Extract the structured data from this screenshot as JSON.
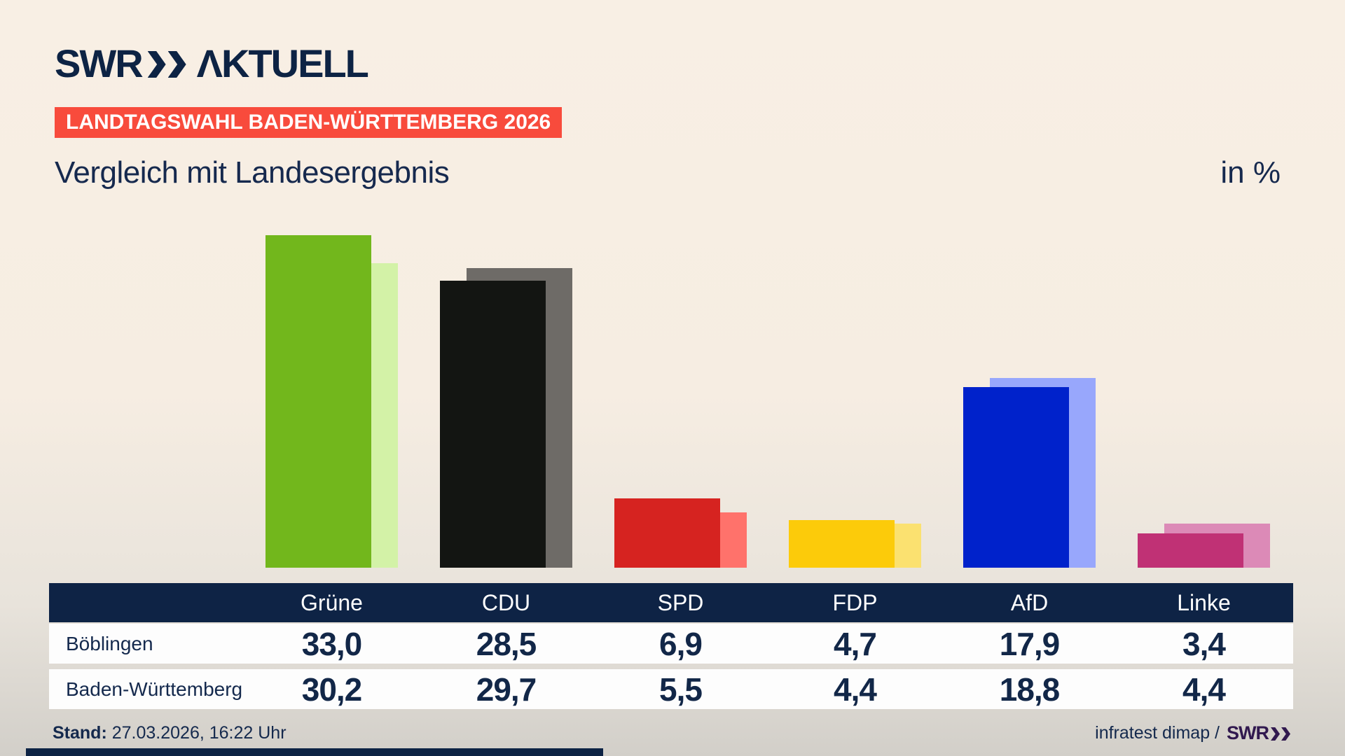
{
  "header": {
    "logo_swr": "SWR",
    "logo_aktuell": "ΛKTUELL",
    "badge": "LANDTAGSWAHL BADEN-WÜRTTEMBERG 2026",
    "title": "Vergleich mit Landesergebnis",
    "unit": "in %"
  },
  "icons": {
    "logo_chevrons": "double-chevron-right",
    "brand_chevrons": "double-chevron-right"
  },
  "colors": {
    "navy": "#0e2345",
    "badge_red": "#f84b3c",
    "background_top": "#f8efe4",
    "background_bottom": "#d2cfc9",
    "row_white": "#fdfdfd",
    "footer_brand_purple": "#31194f"
  },
  "chart_data": {
    "type": "bar",
    "categories": [
      "Grüne",
      "CDU",
      "SPD",
      "FDP",
      "AfD",
      "Linke"
    ],
    "category_keys": [
      "gruene",
      "cdu",
      "spd",
      "fdp",
      "afd",
      "linke"
    ],
    "series": [
      {
        "name": "Böblingen",
        "values": [
          33.0,
          28.5,
          6.9,
          4.7,
          17.9,
          3.4
        ],
        "colors": [
          "#72b71c",
          "#131512",
          "#d62320",
          "#fccb0a",
          "#0022cb",
          "#c03175"
        ]
      },
      {
        "name": "Baden-Württemberg",
        "values": [
          30.2,
          29.7,
          5.5,
          4.4,
          18.8,
          4.4
        ],
        "colors": [
          "#d3f2a7",
          "#6e6b67",
          "#ff726b",
          "#fbe170",
          "#98a7fc",
          "#dc8ab7"
        ]
      }
    ],
    "ylim": [
      0,
      34
    ],
    "unit": "%",
    "grid": false,
    "legend": "none (series shown as table rows below chart)"
  },
  "table": {
    "columns": [
      "Grüne",
      "CDU",
      "SPD",
      "FDP",
      "AfD",
      "Linke"
    ],
    "rows": [
      {
        "label": "Böblingen",
        "values": [
          "33,0",
          "28,5",
          "6,9",
          "4,7",
          "17,9",
          "3,4"
        ]
      },
      {
        "label": "Baden-Württemberg",
        "values": [
          "30,2",
          "29,7",
          "5,5",
          "4,4",
          "18,8",
          "4,4"
        ]
      }
    ]
  },
  "footer": {
    "stand_label": "Stand:",
    "stand_value": " 27.03.2026, 16:22 Uhr",
    "source": "infratest dimap /",
    "source_brand": "SWR"
  }
}
